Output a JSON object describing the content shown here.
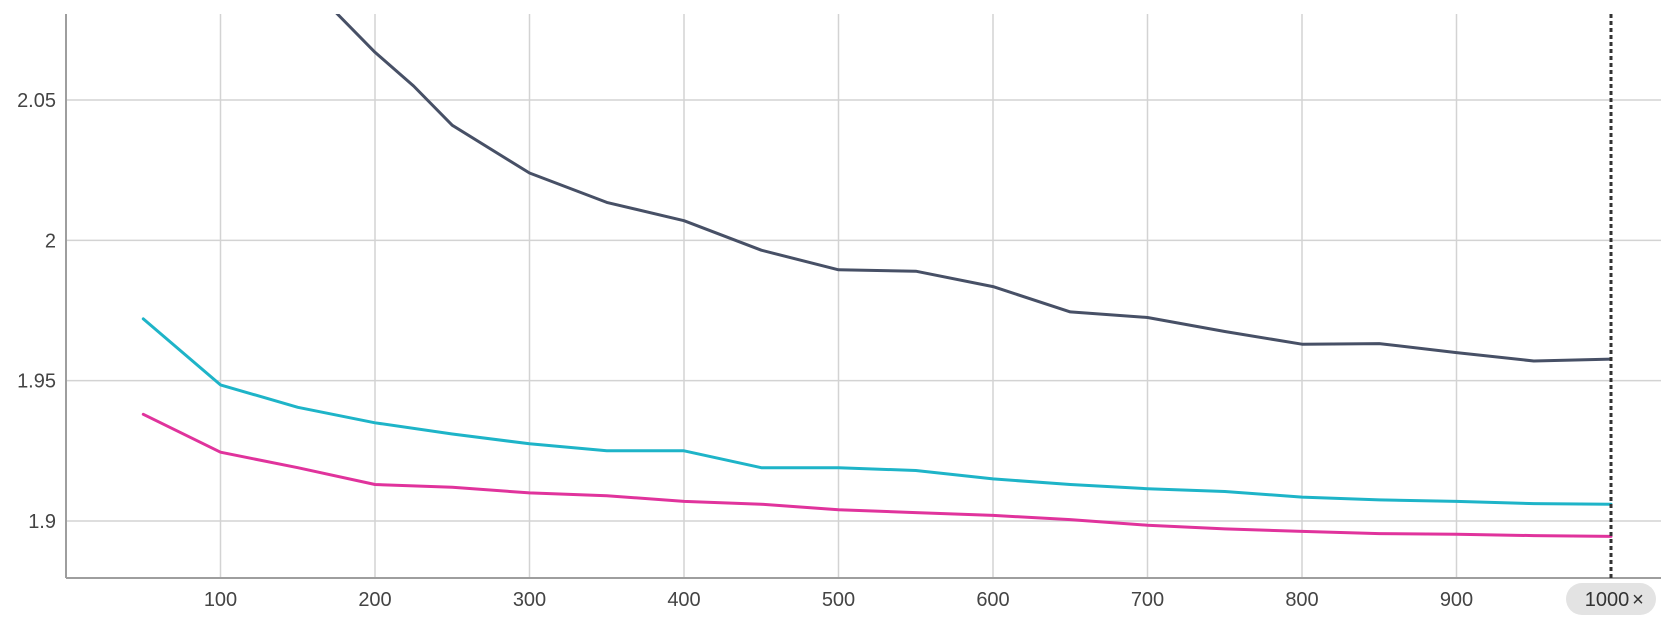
{
  "chart_data": {
    "type": "line",
    "title": "",
    "xlabel": "",
    "ylabel": "",
    "x_ticks": [
      100,
      200,
      300,
      400,
      500,
      600,
      700,
      800,
      900
    ],
    "y_ticks": [
      1.9,
      1.95,
      2,
      2.05
    ],
    "y_tick_labels": [
      "1.9",
      "1.95",
      "2",
      "2.05"
    ],
    "xlim": [
      0,
      1030
    ],
    "ylim": [
      1.88,
      2.08
    ],
    "grid": true,
    "series": [
      {
        "color": "#475066",
        "x": [
          175,
          200,
          225,
          250,
          300,
          350,
          400,
          450,
          500,
          550,
          600,
          650,
          700,
          750,
          800,
          850,
          900,
          950,
          1000
        ],
        "values": [
          2.081,
          2.067,
          2.055,
          2.041,
          2.024,
          2.0135,
          2.007,
          1.9965,
          1.9895,
          1.989,
          1.9835,
          1.9745,
          1.9725,
          1.9675,
          1.963,
          1.9632,
          1.96,
          1.957,
          1.9577
        ]
      },
      {
        "color": "#1eb4c8",
        "x": [
          50,
          100,
          150,
          200,
          250,
          300,
          350,
          400,
          450,
          500,
          550,
          600,
          650,
          700,
          750,
          800,
          850,
          900,
          950,
          1000
        ],
        "values": [
          1.972,
          1.9485,
          1.9405,
          1.935,
          1.931,
          1.9275,
          1.925,
          1.925,
          1.919,
          1.919,
          1.918,
          1.915,
          1.913,
          1.9115,
          1.9105,
          1.9085,
          1.9075,
          1.907,
          1.9062,
          1.906
        ]
      },
      {
        "color": "#e0339c",
        "x": [
          50,
          100,
          150,
          200,
          250,
          300,
          350,
          400,
          450,
          500,
          550,
          600,
          650,
          700,
          750,
          800,
          850,
          900,
          950,
          1000
        ],
        "values": [
          1.938,
          1.9245,
          1.919,
          1.913,
          1.912,
          1.91,
          1.909,
          1.907,
          1.906,
          1.904,
          1.903,
          1.902,
          1.9005,
          1.8985,
          1.8972,
          1.8963,
          1.8955,
          1.8953,
          1.8948,
          1.8945
        ]
      }
    ],
    "hover": {
      "x": 1000,
      "label": "1000",
      "close_symbol": "×"
    }
  }
}
